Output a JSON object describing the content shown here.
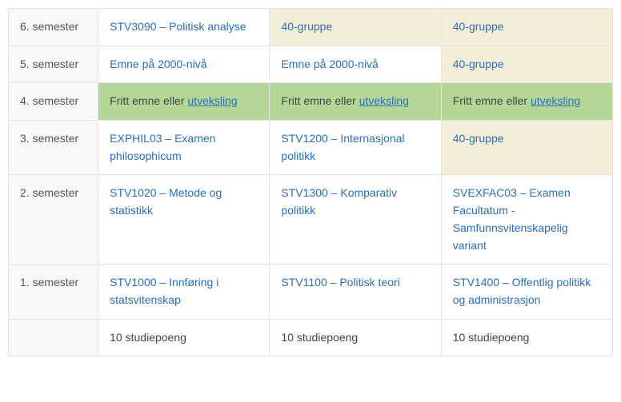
{
  "colors": {
    "border": "#e4e4e4",
    "label_bg": "#f8f8f8",
    "beige": "#f3eed8",
    "green": "#b4d798",
    "link": "#2a6ebb",
    "text": "#444444"
  },
  "rows": [
    {
      "label": "6. semester",
      "cells": [
        {
          "bg": "white",
          "parts": [
            {
              "type": "link",
              "text": "STV3090 – Politisk analyse"
            }
          ]
        },
        {
          "bg": "beige",
          "parts": [
            {
              "type": "link",
              "text": "40-gruppe"
            }
          ]
        },
        {
          "bg": "beige",
          "parts": [
            {
              "type": "link",
              "text": "40-gruppe"
            }
          ]
        }
      ]
    },
    {
      "label": "5. semester",
      "cells": [
        {
          "bg": "white",
          "parts": [
            {
              "type": "link",
              "text": "Emne på 2000-nivå"
            }
          ]
        },
        {
          "bg": "white",
          "parts": [
            {
              "type": "link",
              "text": "Emne på 2000-nivå"
            }
          ]
        },
        {
          "bg": "beige",
          "parts": [
            {
              "type": "link",
              "text": "40-gruppe"
            }
          ]
        }
      ]
    },
    {
      "label": "4. semester",
      "cells": [
        {
          "bg": "green",
          "parts": [
            {
              "type": "plain",
              "text": "Fritt emne eller "
            },
            {
              "type": "ulink",
              "text": "utveksling"
            }
          ]
        },
        {
          "bg": "green",
          "parts": [
            {
              "type": "plain",
              "text": "Fritt emne eller "
            },
            {
              "type": "ulink",
              "text": "utveksling"
            }
          ]
        },
        {
          "bg": "green",
          "parts": [
            {
              "type": "plain",
              "text": "Fritt emne eller "
            },
            {
              "type": "ulink",
              "text": "utveksling"
            }
          ]
        }
      ]
    },
    {
      "label": "3. semester",
      "cells": [
        {
          "bg": "white",
          "parts": [
            {
              "type": "link",
              "text": "EXPHIL03 – Examen philosophicum"
            }
          ]
        },
        {
          "bg": "white",
          "parts": [
            {
              "type": "link",
              "text": "STV1200 – Internasjonal politikk"
            }
          ]
        },
        {
          "bg": "beige",
          "parts": [
            {
              "type": "link",
              "text": "40-gruppe"
            }
          ]
        }
      ]
    },
    {
      "label": "2. semester",
      "cells": [
        {
          "bg": "white",
          "parts": [
            {
              "type": "link",
              "text": "STV1020 – Metode og statistikk"
            }
          ]
        },
        {
          "bg": "white",
          "parts": [
            {
              "type": "link",
              "text": "STV1300 – Komparativ politikk"
            }
          ]
        },
        {
          "bg": "white",
          "parts": [
            {
              "type": "link",
              "text": "SVEXFAC03 – Examen Facultatum - Samfunnsvitenskapelig variant"
            }
          ]
        }
      ]
    },
    {
      "label": "1. semester",
      "cells": [
        {
          "bg": "white",
          "parts": [
            {
              "type": "link",
              "text": "STV1000 – Innføring i statsvitenskap"
            }
          ]
        },
        {
          "bg": "white",
          "parts": [
            {
              "type": "link",
              "text": "STV1100 – Politisk teori"
            }
          ]
        },
        {
          "bg": "white",
          "parts": [
            {
              "type": "link",
              "text": "STV1400 – Offentlig politikk og administrasjon"
            }
          ]
        }
      ]
    },
    {
      "label": "",
      "cells": [
        {
          "bg": "white",
          "parts": [
            {
              "type": "plain",
              "text": "10 studiepoeng"
            }
          ]
        },
        {
          "bg": "white",
          "parts": [
            {
              "type": "plain",
              "text": "10 studiepoeng"
            }
          ]
        },
        {
          "bg": "white",
          "parts": [
            {
              "type": "plain",
              "text": "10 studiepoeng"
            }
          ]
        }
      ]
    }
  ]
}
